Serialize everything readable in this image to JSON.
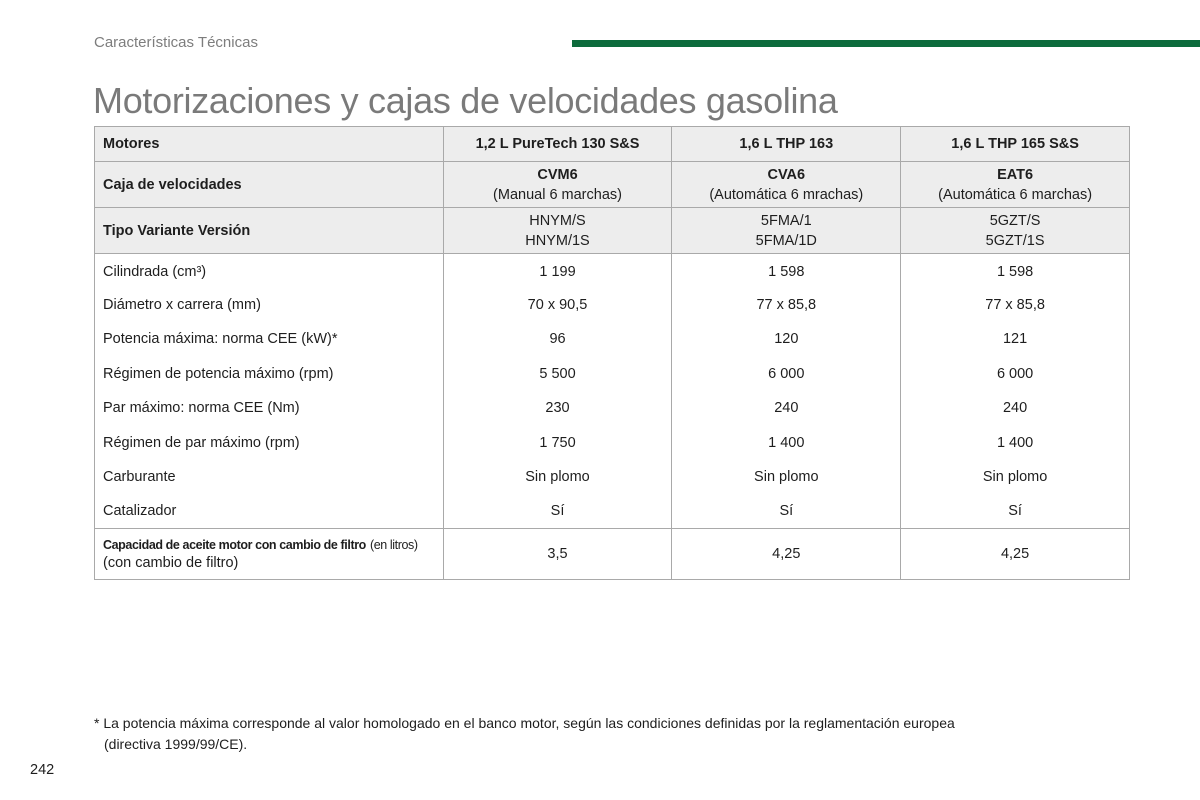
{
  "header": {
    "section_title": "Características Técnicas",
    "page_heading": "Motorizaciones y cajas de velocidades gasolina",
    "accent_color": "#0d6b3c"
  },
  "table": {
    "engines_row": {
      "label": "Motores",
      "values": [
        "1,2 L PureTech 130 S&S",
        "1,6 L THP 163",
        "1,6 L THP 165 S&S"
      ]
    },
    "gearbox_row": {
      "label": "Caja de velocidades",
      "codes": [
        "CVM6",
        "CVA6",
        "EAT6"
      ],
      "descriptions": [
        "(Manual 6 marchas)",
        "(Automática 6 mrachas)",
        "(Automática 6 marchas)"
      ]
    },
    "type_row": {
      "label": "Tipo Variante Versión",
      "line1": [
        "HNYM/S",
        "5FMA/1",
        "5GZT/S"
      ],
      "line2": [
        "HNYM/1S",
        "5FMA/1D",
        "5GZT/1S"
      ]
    },
    "rows": [
      {
        "label": "Cilindrada (cm³)",
        "values": [
          "1 199",
          "1 598",
          "1 598"
        ]
      },
      {
        "label": "Diámetro x carrera (mm)",
        "values": [
          "70 x 90,5",
          "77 x 85,8",
          "77 x 85,8"
        ]
      },
      {
        "label": "Potencia máxima: norma CEE (kW)*",
        "values": [
          "96",
          "120",
          "121"
        ]
      },
      {
        "label": "Régimen de potencia máximo (rpm)",
        "values": [
          "5 500",
          "6 000",
          "6 000"
        ]
      },
      {
        "label": "Par máximo: norma CEE (Nm)",
        "values": [
          "230",
          "240",
          "240"
        ]
      },
      {
        "label": "Régimen de par máximo (rpm)",
        "values": [
          "1 750",
          "1 400",
          "1 400"
        ]
      },
      {
        "label": "Carburante",
        "values": [
          "Sin plomo",
          "Sin plomo",
          "Sin plomo"
        ]
      },
      {
        "label": "Catalizador",
        "values": [
          "Sí",
          "Sí",
          "Sí"
        ]
      }
    ],
    "oil_row": {
      "label_bold": "Capacidad de aceite motor con cambio de filtro",
      "label_small": "(en litros)",
      "label_line2": "(con cambio de filtro)",
      "values": [
        "3,5",
        "4,25",
        "4,25"
      ]
    }
  },
  "footnote": {
    "line1": "* La potencia máxima corresponde al valor homologado en el banco motor, según las condiciones definidas por la reglamentación europea",
    "line2": "(directiva 1999/99/CE)."
  },
  "page_number": "242"
}
